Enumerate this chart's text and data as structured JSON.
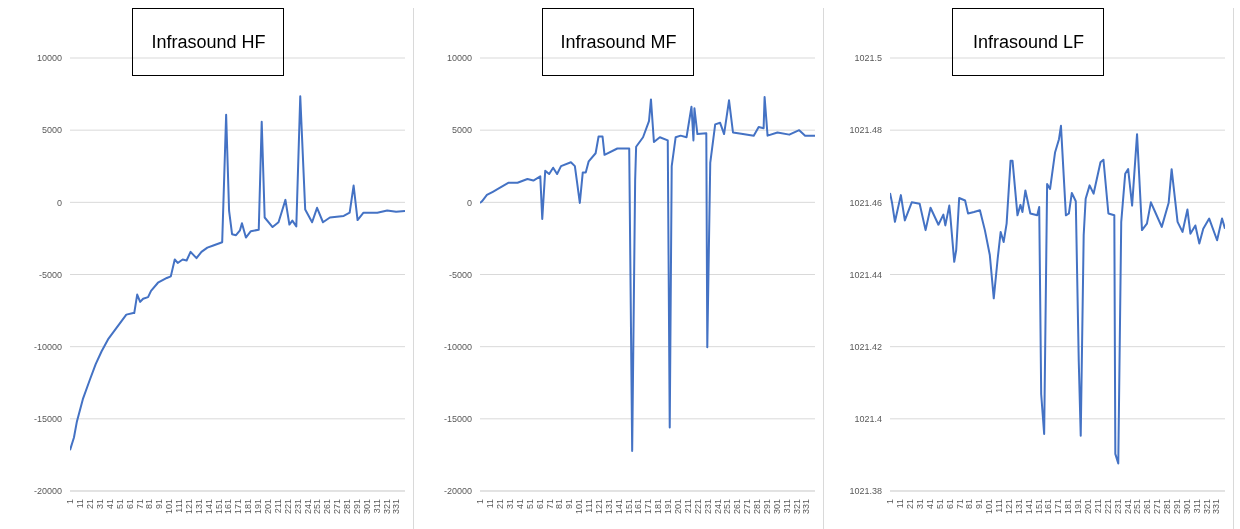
{
  "chart_data": [
    {
      "type": "line",
      "title": "Infrasound HF",
      "xlim": [
        1,
        340
      ],
      "xticks": [
        1,
        11,
        21,
        31,
        41,
        51,
        61,
        71,
        81,
        91,
        101,
        111,
        121,
        131,
        141,
        151,
        161,
        171,
        181,
        191,
        201,
        211,
        221,
        231,
        241,
        251,
        261,
        271,
        281,
        291,
        301,
        311,
        321,
        331
      ],
      "ylim": [
        -20000,
        10000
      ],
      "yticks": [
        -20000,
        -15000,
        -10000,
        -5000,
        0,
        5000,
        10000
      ],
      "grid": "y",
      "legend": false,
      "marker": "none",
      "line_style": "solid",
      "series": [
        {
          "color": "#4472c4",
          "x": [
            1,
            5,
            8,
            14,
            21,
            27,
            33,
            40,
            46,
            52,
            58,
            65,
            66,
            69,
            72,
            75,
            80,
            83,
            90,
            99,
            103,
            107,
            110,
            115,
            119,
            123,
            129,
            134,
            140,
            146,
            155,
            159,
            162,
            165,
            169,
            173,
            175,
            179,
            184,
            192,
            195,
            198,
            206,
            212,
            215,
            219,
            223,
            226,
            230,
            234,
            239,
            246,
            251,
            257,
            264,
            278,
            284,
            288,
            292,
            298,
            312,
            322,
            331,
            340
          ],
          "values": [
            -17170,
            -16290,
            -15180,
            -13640,
            -12310,
            -11210,
            -10320,
            -9440,
            -8890,
            -8330,
            -7780,
            -7670,
            -7670,
            -6390,
            -6900,
            -6680,
            -6570,
            -6130,
            -5570,
            -5240,
            -5130,
            -3960,
            -4200,
            -3960,
            -4030,
            -3430,
            -3870,
            -3430,
            -3140,
            -2990,
            -2770,
            6070,
            -600,
            -2210,
            -2280,
            -1940,
            -1450,
            -2440,
            -2000,
            -1900,
            5580,
            -1050,
            -1710,
            -1380,
            -720,
            170,
            -1540,
            -1270,
            -1670,
            7350,
            -500,
            -1380,
            -380,
            -1380,
            -1050,
            -940,
            -720,
            1160,
            -1230,
            -720,
            -720,
            -560,
            -650,
            -600
          ]
        }
      ]
    },
    {
      "type": "line",
      "title": "Infrasound MF",
      "xlim": [
        1,
        340
      ],
      "xticks": [
        1,
        11,
        21,
        31,
        41,
        51,
        61,
        71,
        81,
        91,
        101,
        111,
        121,
        131,
        141,
        151,
        161,
        171,
        181,
        191,
        201,
        211,
        221,
        231,
        241,
        251,
        261,
        271,
        281,
        291,
        301,
        311,
        321,
        331
      ],
      "ylim": [
        -20000,
        10000
      ],
      "yticks": [
        -20000,
        -15000,
        -10000,
        -5000,
        0,
        5000,
        10000
      ],
      "grid": "y",
      "legend": false,
      "marker": "none",
      "line_style": "solid",
      "series": [
        {
          "color": "#4472c4",
          "x": [
            1,
            3,
            8,
            14,
            20,
            30,
            39,
            49,
            55,
            62,
            64,
            67,
            71,
            75,
            79,
            83,
            93,
            97,
            99,
            102,
            105,
            108,
            111,
            118,
            121,
            125,
            127,
            140,
            152,
            155,
            158,
            159,
            166,
            172,
            174,
            177,
            183,
            191,
            193,
            195,
            199,
            204,
            210,
            215,
            217,
            218,
            221,
            230,
            231,
            234,
            239,
            244,
            248,
            253,
            257,
            267,
            278,
            283,
            288,
            289,
            292,
            302,
            314,
            324,
            330,
            340
          ],
          "values": [
            -40,
            70,
            510,
            730,
            960,
            1360,
            1360,
            1620,
            1510,
            1800,
            -1150,
            2180,
            1960,
            2400,
            1960,
            2510,
            2780,
            2510,
            1510,
            -40,
            2070,
            2070,
            2840,
            3400,
            4560,
            4560,
            3290,
            3730,
            3730,
            -17220,
            1510,
            3850,
            4510,
            5620,
            7130,
            4180,
            4510,
            4290,
            -15600,
            2510,
            4510,
            4620,
            4510,
            6620,
            4290,
            6510,
            4730,
            4780,
            -10040,
            2730,
            5400,
            5510,
            4730,
            7070,
            4840,
            4730,
            4620,
            5220,
            5130,
            7290,
            4620,
            4840,
            4690,
            5000,
            4620,
            4620
          ]
        }
      ]
    },
    {
      "type": "line",
      "title": "Infrasound LF",
      "xlim": [
        1,
        340
      ],
      "xticks": [
        1,
        11,
        21,
        31,
        41,
        51,
        61,
        71,
        81,
        91,
        101,
        111,
        121,
        131,
        141,
        151,
        161,
        171,
        181,
        191,
        201,
        211,
        221,
        231,
        241,
        251,
        261,
        271,
        281,
        291,
        301,
        311,
        321,
        331
      ],
      "ylim": [
        1021.38,
        1021.5
      ],
      "yticks": [
        1021.38,
        1021.4,
        1021.42,
        1021.44,
        1021.46,
        1021.48,
        1021.5
      ],
      "grid": "y",
      "legend": false,
      "marker": "none",
      "line_style": "solid",
      "series": [
        {
          "color": "#4472c4",
          "x": [
            1,
            3,
            6,
            12,
            16,
            23,
            31,
            37,
            42,
            50,
            55,
            57,
            61,
            62,
            66,
            68,
            71,
            77,
            80,
            86,
            92,
            97,
            102,
            106,
            110,
            113,
            116,
            119,
            123,
            125,
            130,
            133,
            135,
            138,
            143,
            150,
            152,
            154,
            157,
            160,
            163,
            168,
            172,
            174,
            179,
            182,
            185,
            189,
            192,
            194,
            197,
            199,
            203,
            207,
            214,
            217,
            222,
            228,
            229,
            232,
            235,
            239,
            242,
            246,
            251,
            256,
            261,
            265,
            270,
            276,
            283,
            286,
            292,
            297,
            302,
            305,
            310,
            314,
            318,
            324,
            332,
            337,
            340
          ],
          "values": [
            1021.4626,
            1021.46,
            1021.4546,
            1021.462,
            1021.455,
            1021.46,
            1021.4596,
            1021.4523,
            1021.4585,
            1021.4538,
            1021.4566,
            1021.4536,
            1021.4591,
            1021.4564,
            1021.4435,
            1021.4468,
            1021.4612,
            1021.4605,
            1021.4569,
            1021.4573,
            1021.4578,
            1021.4523,
            1021.4454,
            1021.4334,
            1021.4445,
            1021.4518,
            1021.449,
            1021.4541,
            1021.4715,
            1021.4715,
            1021.4564,
            1021.4593,
            1021.4573,
            1021.4633,
            1021.4569,
            1021.4564,
            1021.4587,
            1021.4068,
            1021.3958,
            1021.4651,
            1021.4637,
            1021.4738,
            1021.4775,
            1021.4812,
            1021.4564,
            1021.4569,
            1021.4626,
            1021.4603,
            1021.416,
            1021.3953,
            1021.4509,
            1021.461,
            1021.4647,
            1021.4624,
            1021.4711,
            1021.4718,
            1021.4569,
            1021.4564,
            1021.3903,
            1021.3876,
            1021.4546,
            1021.4679,
            1021.4692,
            1021.4591,
            1021.4789,
            1021.4523,
            1021.4541,
            1021.46,
            1021.4569,
            1021.4532,
            1021.4599,
            1021.4692,
            1021.4546,
            1021.4518,
            1021.458,
            1021.4513,
            1021.4536,
            1021.4486,
            1021.4527,
            1021.4555,
            1021.4495,
            1021.4555,
            1021.4527
          ]
        }
      ]
    }
  ]
}
